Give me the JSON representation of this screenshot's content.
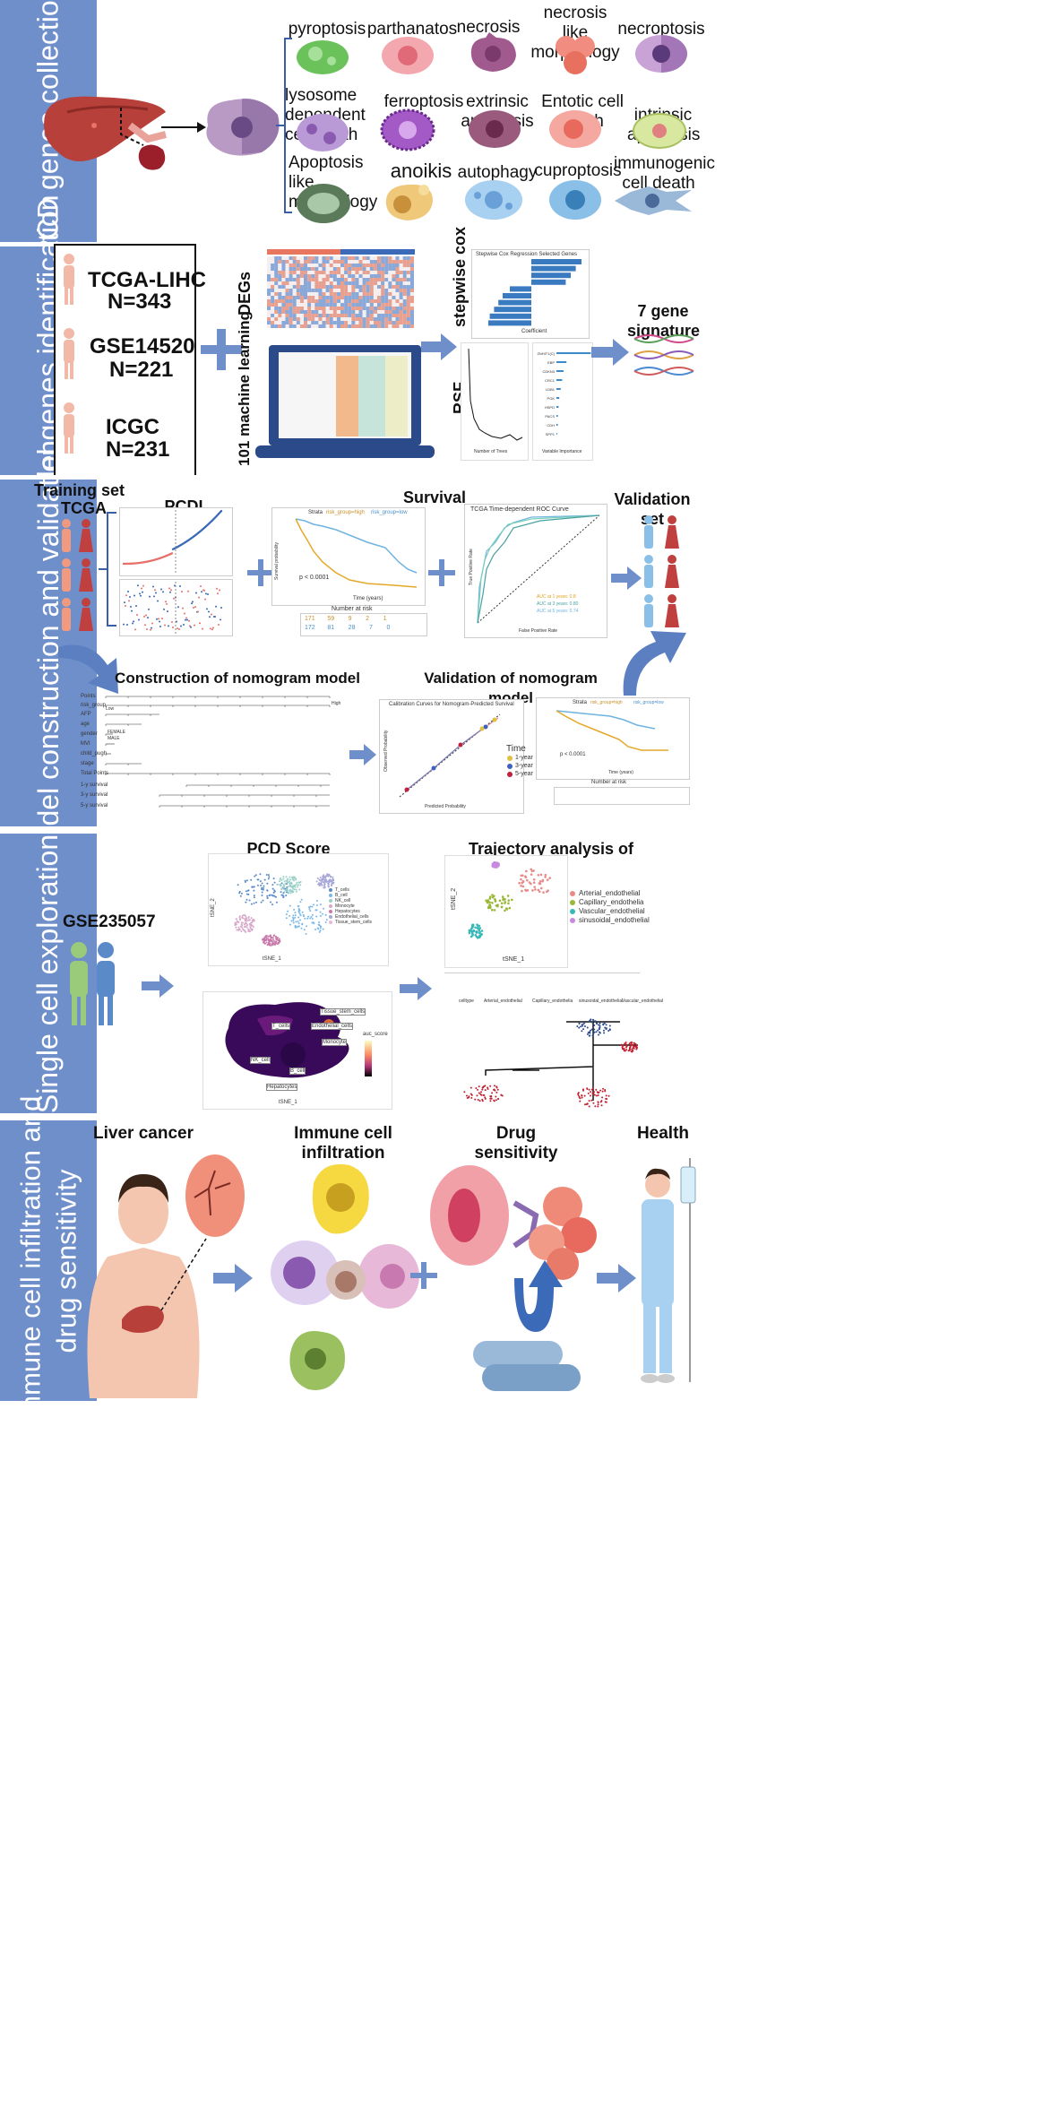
{
  "sidebars": {
    "s1": "PCD  genes  collection",
    "s2": "Model genes identification",
    "s3": "Model construction and validation",
    "s4": "Single  cell  exploration",
    "s5": "Immune cell infiltration and\ndrug sensitivity"
  },
  "pcd_types": [
    "pyroptosis",
    "parthanatos",
    "necrosis",
    "necrosis like morphology",
    "necroptosis",
    "lysosome dependent cell death",
    "ferroptosis",
    "extrinsic apoptosis",
    "Entotic cell death",
    "intrinsic apoptosis",
    "Apoptosis like morphology",
    "anoikis",
    "autophagy",
    "cuproptosis",
    "immunogenic cell death"
  ],
  "datasets": {
    "d1_name": "TCGA-LIHC",
    "d1_n": "N=343",
    "d2_name": "GSE14520",
    "d2_n": "N=221",
    "d3_name": "ICGC",
    "d3_n": "N=231"
  },
  "model": {
    "degs": "DEGs",
    "ml": "101 machine learning",
    "stepwise": "stepwise cox",
    "rsf": "RSF",
    "signature": "7 gene signature",
    "stepwise_title": "Stepwise Cox Regression Selected Genes",
    "stepwise_xlabel": "Coefficient",
    "rsf_xlabel1": "Number of Trees",
    "rsf_xlabel2": "Variable Importance"
  },
  "rsf_genes": [
    "ZNHIT1(C)",
    "EBP",
    "CDKN3",
    "CRC1",
    "LDB1",
    "PGK",
    "HSPD",
    "PACS",
    "CDH",
    "SPP1"
  ],
  "validation": {
    "training_set": "Training set",
    "tcga": "TCGA",
    "pcdi": "PCDI",
    "survival": "Survival",
    "validation_set": "Validation set",
    "construction": "Construction of nomogram model",
    "validation_nomo": "Validation of nomogram model",
    "km_pvalue": "p < 0.0001",
    "km_pvalue2": "p < 0.0001",
    "strata": "Strata",
    "risk_high": "risk_group=high",
    "risk_low": "risk_group=low",
    "number_at_risk": "Number at risk",
    "time_years": "Time (years)",
    "surv_prob": "Survival probability",
    "roc_title": "TCGA Time-dependent ROC Curve",
    "roc_xlabel": "False Positive Rate",
    "roc_ylabel": "True Positive Rate",
    "auc1": "AUC at 1 years: 0.8",
    "auc3": "AUC at 3 years: 0.80",
    "auc5": "AUC at 5 years: 0.74",
    "calib_title": "Calibration Curves for Nomogram-Predicted Survival",
    "calib_x": "Predicted Probability",
    "calib_y": "Observed Probability",
    "time_legend": "Time",
    "y1": "1-year",
    "y3": "3-year",
    "y5": "5-year",
    "risk_numbers_high": [
      "171",
      "59",
      "9",
      "2",
      "1"
    ],
    "risk_numbers_low": [
      "172",
      "81",
      "28",
      "7",
      "0"
    ]
  },
  "nomogram": {
    "rows": [
      "Points",
      "risk_group",
      "AFP",
      "age",
      "gender",
      "MVI",
      "child_pugh",
      "stage",
      "Total Points",
      "1-y survival",
      "3-y survival",
      "5-y survival"
    ],
    "points_ticks": [
      "0",
      "10",
      "20",
      "30",
      "40",
      "50",
      "60",
      "70",
      "80",
      "90",
      "100"
    ],
    "total_ticks": [
      "0",
      "20",
      "40",
      "60",
      "80",
      "100",
      "120",
      "140",
      "160",
      "180"
    ],
    "high": "High",
    "low": "Low",
    "female": "FEMALE",
    "male": "MALE"
  },
  "single_cell": {
    "gse": "GSE235057",
    "pcd_score": "PCD Score",
    "trajectory": "Trajectory analysis of ECs",
    "tsne1": "tSNE_1",
    "tsne2": "tSNE_2",
    "cell_types": [
      "T_cells",
      "B_cell",
      "NK_cell",
      "Monocyte",
      "Hepatocytes",
      "Endothelial_cells",
      "Tissue_stem_cells"
    ],
    "ec_types": [
      "Arterial_endothelial",
      "Capillary_endothelia",
      "Vascular_endothelial",
      "sinusoidal_endothelial"
    ],
    "celltype_label": "celltype",
    "traj_legend": [
      "Arterial_endothelial",
      "Capillary_endothelia",
      "sinusoidal_endothelial",
      "Vascular_endothelial"
    ],
    "auc_score": "auc_score",
    "map_labels": [
      "Tissue_stem_cells",
      "T_cells",
      "Endothelial_cells",
      "Monocyte",
      "NK_cell",
      "B_cell",
      "Hepatocytes"
    ]
  },
  "immune": {
    "liver_cancer": "Liver cancer",
    "infiltration": "Immune cell infiltration",
    "drug": "Drug sensitivity",
    "health": "Health"
  },
  "colors": {
    "sidebar": "#6f8fcb",
    "arrow": "#5b7fc0",
    "high": "#e4a82a",
    "low": "#6fb3e0"
  }
}
